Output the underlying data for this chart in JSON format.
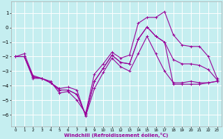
{
  "background_color": "#c5eef0",
  "grid_color": "#ffffff",
  "line_color": "#990099",
  "xlabel": "Windchill (Refroidissement éolien,°C)",
  "xlim": [
    -0.5,
    23.5
  ],
  "ylim": [
    -6.8,
    1.8
  ],
  "yticks": [
    1,
    0,
    -1,
    -2,
    -3,
    -4,
    -5,
    -6
  ],
  "xticks": [
    0,
    1,
    2,
    3,
    4,
    5,
    6,
    7,
    8,
    9,
    10,
    11,
    12,
    13,
    14,
    15,
    16,
    17,
    18,
    19,
    20,
    21,
    22,
    23
  ],
  "series": [
    {
      "x": [
        0,
        1,
        2,
        3,
        4,
        5,
        6,
        7,
        8,
        9,
        10,
        11,
        12,
        13,
        14,
        15,
        16,
        17,
        18,
        19,
        20,
        21,
        22,
        23
      ],
      "y": [
        -2.0,
        -1.8,
        -3.3,
        -3.5,
        -3.7,
        -4.5,
        -4.4,
        -5.0,
        -5.9,
        -3.2,
        -2.5,
        -1.7,
        -2.1,
        -1.9,
        0.3,
        0.7,
        0.7,
        1.1,
        -0.5,
        -1.2,
        -1.3,
        -1.3,
        -2.0,
        -3.5
      ]
    },
    {
      "x": [
        0,
        1,
        2,
        3,
        4,
        5,
        6,
        7,
        8,
        9,
        10,
        11,
        12,
        13,
        14,
        15,
        16,
        17,
        18,
        19,
        20,
        21,
        22,
        23
      ],
      "y": [
        -2.0,
        -2.0,
        -3.5,
        -3.5,
        -3.8,
        -4.2,
        -4.1,
        -4.3,
        -6.1,
        -4.2,
        -3.1,
        -2.1,
        -2.7,
        -3.0,
        -1.8,
        -0.6,
        -1.8,
        -3.0,
        -3.8,
        -3.8,
        -3.7,
        -3.8,
        -3.8,
        -3.7
      ]
    },
    {
      "x": [
        0,
        1,
        2,
        3,
        4,
        5,
        6,
        7,
        8,
        9,
        10,
        11,
        12,
        13,
        14,
        15,
        16,
        17,
        18,
        19,
        20,
        21,
        22,
        23
      ],
      "y": [
        -2.0,
        -2.0,
        -3.4,
        -3.5,
        -3.8,
        -4.3,
        -4.3,
        -4.6,
        -6.0,
        -3.7,
        -2.8,
        -1.9,
        -2.4,
        -2.5,
        -0.8,
        0.05,
        -0.6,
        -1.0,
        -2.2,
        -2.5,
        -2.5,
        -2.6,
        -2.9,
        -3.6
      ]
    },
    {
      "x": [
        0,
        1,
        2,
        3,
        4,
        5,
        6,
        7,
        8,
        9,
        10,
        11,
        12,
        13,
        14,
        15,
        16,
        17,
        18,
        19,
        20,
        21,
        22,
        23
      ],
      "y": [
        -2.0,
        -2.0,
        -3.4,
        -3.5,
        -3.8,
        -4.3,
        -4.3,
        -4.6,
        -6.0,
        -3.7,
        -2.8,
        -1.9,
        -2.4,
        -2.5,
        -0.8,
        0.05,
        -0.6,
        -1.0,
        -3.9,
        -3.9,
        -3.9,
        -3.9,
        -3.8,
        -3.7
      ]
    }
  ]
}
